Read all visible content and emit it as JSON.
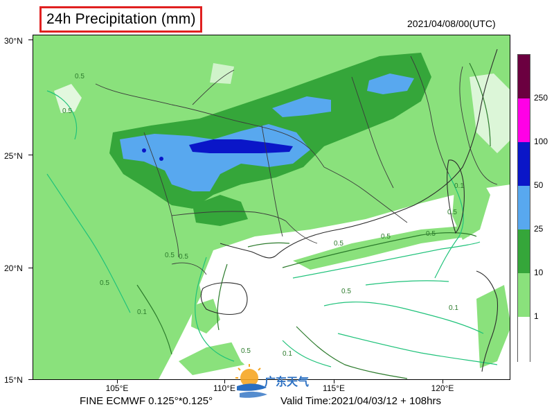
{
  "title": "24h Precipitation (mm)",
  "init_time": "2021/04/08/00(UTC)",
  "model": "FINE ECMWF 0.125°*0.125°",
  "valid_time": "Valid Time:2021/04/03/12 + 108hrs",
  "logo_text": "广东天气",
  "lat_labels": [
    "30°N",
    "25°N",
    "20°N",
    "15°N"
  ],
  "lon_labels": [
    "105°E",
    "110°E",
    "115°E",
    "120°E"
  ],
  "colorbar": {
    "labels": [
      "250",
      "100",
      "50",
      "25",
      "10",
      "1"
    ],
    "colors": [
      "#6b0040",
      "#ff00e6",
      "#0a16c8",
      "#58a8ef",
      "#35a63a",
      "#8ae17c",
      "#ffffff"
    ]
  },
  "contour_labels": [
    "0.5",
    "0.1"
  ],
  "colors": {
    "light_green": "#8ae17c",
    "mid_green": "#35a63a",
    "light_blue": "#58a8ef",
    "dark_blue": "#0a16c8",
    "contour_dark": "#2b7a2b",
    "contour_light": "#1fc27a",
    "border": "#3a3a3a",
    "title_box": "#e02020"
  }
}
